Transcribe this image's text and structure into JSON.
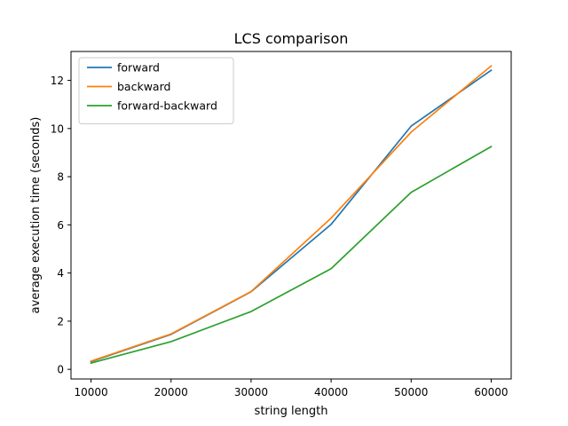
{
  "chart_data": {
    "type": "line",
    "title": "LCS comparison",
    "xlabel": "string length",
    "ylabel": "average execution time (seconds)",
    "x": [
      10000,
      20000,
      30000,
      40000,
      50000,
      60000
    ],
    "xticks": [
      "10000",
      "20000",
      "30000",
      "40000",
      "50000",
      "60000"
    ],
    "yticks": [
      "0",
      "2",
      "4",
      "6",
      "8",
      "10",
      "12"
    ],
    "xlim": [
      7500,
      62500
    ],
    "ylim": [
      -0.4,
      13.2
    ],
    "grid": false,
    "legend_position": "upper-left",
    "series": [
      {
        "name": "forward",
        "color": "#1f77b4",
        "values": [
          0.32,
          1.45,
          3.22,
          6.02,
          10.1,
          12.42
        ]
      },
      {
        "name": "backward",
        "color": "#ff7f0e",
        "values": [
          0.34,
          1.47,
          3.23,
          6.28,
          9.85,
          12.6
        ]
      },
      {
        "name": "forward-backward",
        "color": "#2ca02c",
        "values": [
          0.26,
          1.15,
          2.4,
          4.18,
          7.35,
          9.25
        ]
      }
    ]
  }
}
